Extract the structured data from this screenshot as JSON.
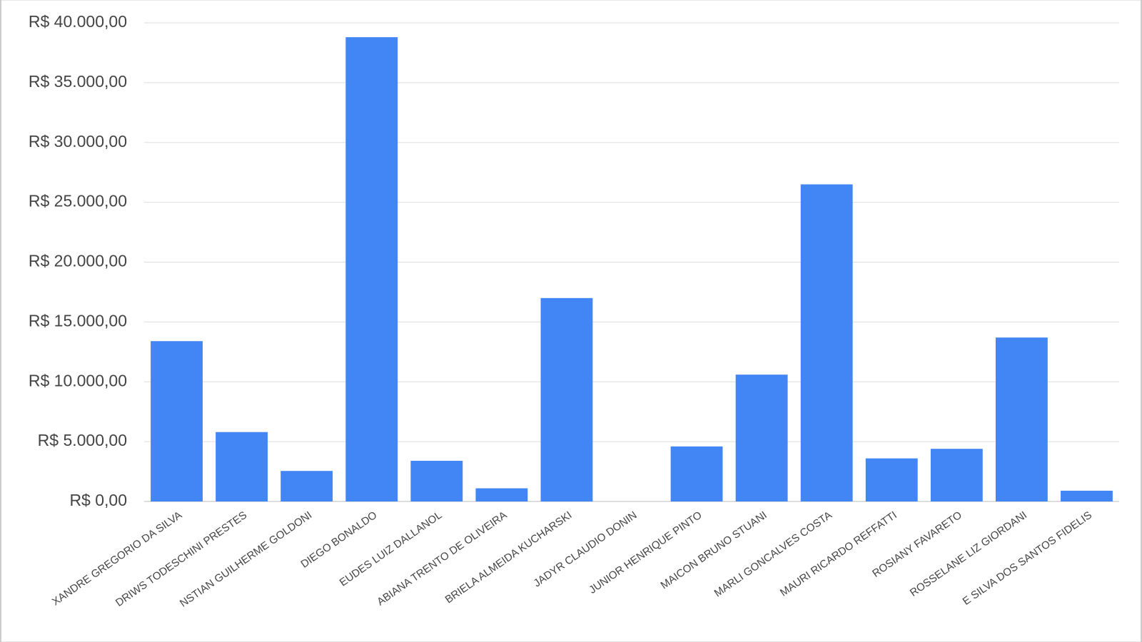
{
  "chart_data": {
    "type": "bar",
    "categories": [
      "XANDRE GREGORIO DA SILVA",
      "DRIWS TODESCHINI PRESTES",
      "NSTIAN GUILHERME GOLDONI",
      "DIEGO BONALDO",
      "EUDES LUIZ DALLANOL",
      "ABIANA TRENTO DE OLIVEIRA",
      "BRIELA ALMEIDA KUCHARSKI",
      "JADYR CLAUDIO DONIN",
      "JUNIOR HENRIQUE PINTO",
      "MAICON BRUNO STUANI",
      "MARLI GONCALVES COSTA",
      "MAURI RICARDO REFFATTI",
      "ROSIANY FAVARETO",
      "ROSSELANE LIZ GIORDANI",
      "E SILVA DOS SANTOS FIDELIS"
    ],
    "values": [
      13400,
      5800,
      2550,
      38800,
      3400,
      1100,
      17000,
      0,
      4600,
      10600,
      26500,
      3600,
      4400,
      13700,
      900
    ],
    "color": "#4285f4",
    "ylim": [
      0,
      40000
    ],
    "yticks": [
      {
        "value": 0,
        "label": "R$ 0,00"
      },
      {
        "value": 5000,
        "label": "R$ 5.000,00"
      },
      {
        "value": 10000,
        "label": "R$ 10.000,00"
      },
      {
        "value": 15000,
        "label": "R$ 15.000,00"
      },
      {
        "value": 20000,
        "label": "R$ 20.000,00"
      },
      {
        "value": 25000,
        "label": "R$ 25.000,00"
      },
      {
        "value": 30000,
        "label": "R$ 30.000,00"
      },
      {
        "value": 35000,
        "label": "R$ 35.000,00"
      },
      {
        "value": 40000,
        "label": "R$ 40.000,00"
      }
    ],
    "grid": true
  }
}
